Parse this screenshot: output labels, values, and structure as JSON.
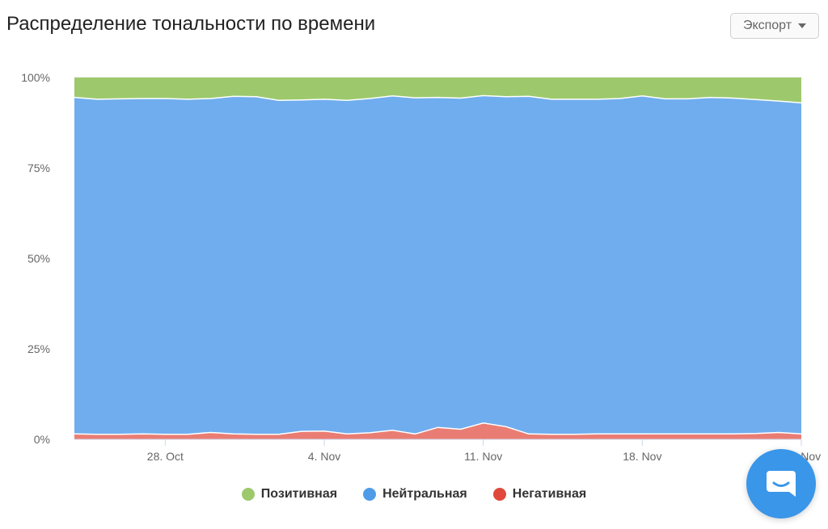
{
  "title": "Распределение тональности по времени",
  "export": {
    "label": "Экспорт",
    "icon": "caret-down-icon"
  },
  "chat": {
    "icon": "chat-icon"
  },
  "colors": {
    "positive": "#9dc96c",
    "neutral": "#70adee",
    "negative": "#ea7d73"
  },
  "chart_data": {
    "type": "area",
    "stacked": true,
    "normalized": true,
    "title": "Распределение тональности по времени",
    "ylim": [
      0,
      100
    ],
    "y_ticks": [
      "0%",
      "25%",
      "50%",
      "75%",
      "100%"
    ],
    "x_ticks": [
      "28. Oct",
      "4. Nov",
      "11. Nov",
      "18. Nov",
      "25. Nov"
    ],
    "x_tick_index": [
      4,
      11,
      18,
      25,
      32
    ],
    "x_count": 33,
    "legend_position": "bottom",
    "grid": true,
    "series": [
      {
        "name": "Негативная",
        "color": "#ea7d73",
        "values": [
          1.5,
          1.4,
          1.4,
          1.5,
          1.4,
          1.4,
          1.9,
          1.5,
          1.4,
          1.4,
          2.2,
          2.3,
          1.5,
          1.8,
          2.5,
          1.5,
          3.3,
          2.8,
          4.5,
          3.5,
          1.5,
          1.4,
          1.4,
          1.5,
          1.5,
          1.5,
          1.5,
          1.5,
          1.5,
          1.5,
          1.6,
          1.9,
          1.5
        ]
      },
      {
        "name": "Нейтральная",
        "color": "#70adee",
        "values": [
          93.0,
          92.6,
          92.7,
          92.7,
          92.8,
          92.6,
          92.3,
          93.3,
          93.3,
          92.3,
          91.6,
          91.7,
          92.2,
          92.4,
          92.4,
          92.9,
          91.2,
          91.5,
          90.5,
          91.2,
          93.3,
          92.6,
          92.6,
          92.5,
          92.7,
          93.4,
          92.6,
          92.6,
          93.0,
          92.8,
          92.3,
          91.6,
          91.5
        ]
      },
      {
        "name": "Позитивная",
        "color": "#9dc96c",
        "values": [
          5.5,
          6.0,
          5.9,
          5.8,
          5.8,
          6.0,
          5.8,
          5.2,
          5.3,
          6.3,
          6.2,
          6.0,
          6.3,
          5.8,
          5.1,
          5.6,
          5.5,
          5.7,
          5.0,
          5.3,
          5.2,
          6.0,
          6.0,
          6.0,
          5.8,
          5.1,
          5.9,
          5.9,
          5.5,
          5.7,
          6.1,
          6.5,
          7.0
        ]
      }
    ],
    "legend": [
      "Позитивная",
      "Нейтральная",
      "Негативная"
    ]
  }
}
